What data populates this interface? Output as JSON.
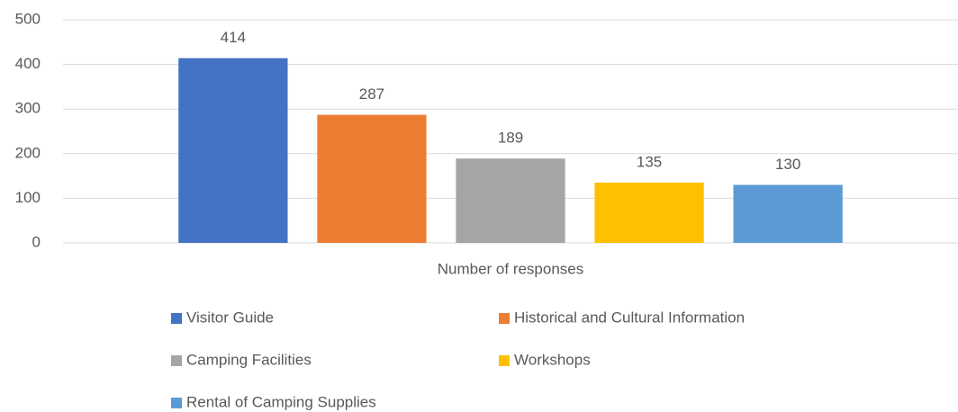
{
  "chart_data": {
    "type": "bar",
    "categories": [
      "Number of responses"
    ],
    "series": [
      {
        "name": "Visitor Guide",
        "color": "#4472c4",
        "values": [
          414
        ]
      },
      {
        "name": "Historical and Cultural Information",
        "color": "#ed7d31",
        "values": [
          287
        ]
      },
      {
        "name": "Camping Facilities",
        "color": "#a5a5a5",
        "values": [
          189
        ]
      },
      {
        "name": "Workshops",
        "color": "#ffc000",
        "values": [
          135
        ]
      },
      {
        "name": "Rental of Camping Supplies",
        "color": "#5b9bd5",
        "values": [
          130
        ]
      }
    ],
    "ylim": [
      0,
      500
    ],
    "yticks": [
      0,
      100,
      200,
      300,
      400,
      500
    ],
    "grid": true,
    "legend": "bottom"
  }
}
